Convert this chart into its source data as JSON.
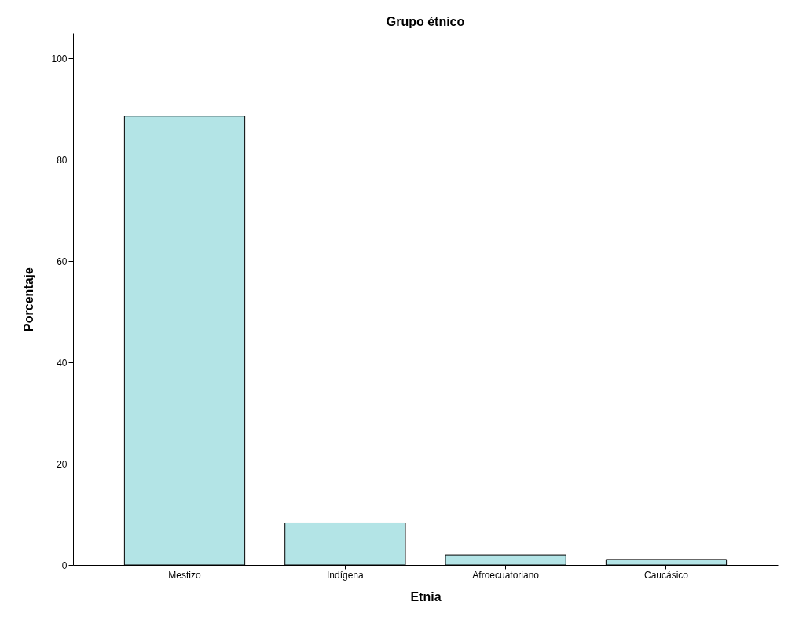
{
  "chart_data": {
    "type": "bar",
    "title": "Grupo étnico",
    "xlabel": "Etnia",
    "ylabel": "Porcentaje",
    "categories": [
      "Mestizo",
      "Indígena",
      "Afroecuatoriano",
      "Caucásico"
    ],
    "values": [
      88.6,
      8.3,
      2.0,
      1.1
    ],
    "color": "#b3e4e6",
    "ylim": [
      0,
      105
    ],
    "yticks": [
      0,
      20,
      40,
      60,
      80,
      100
    ],
    "grid": false
  }
}
